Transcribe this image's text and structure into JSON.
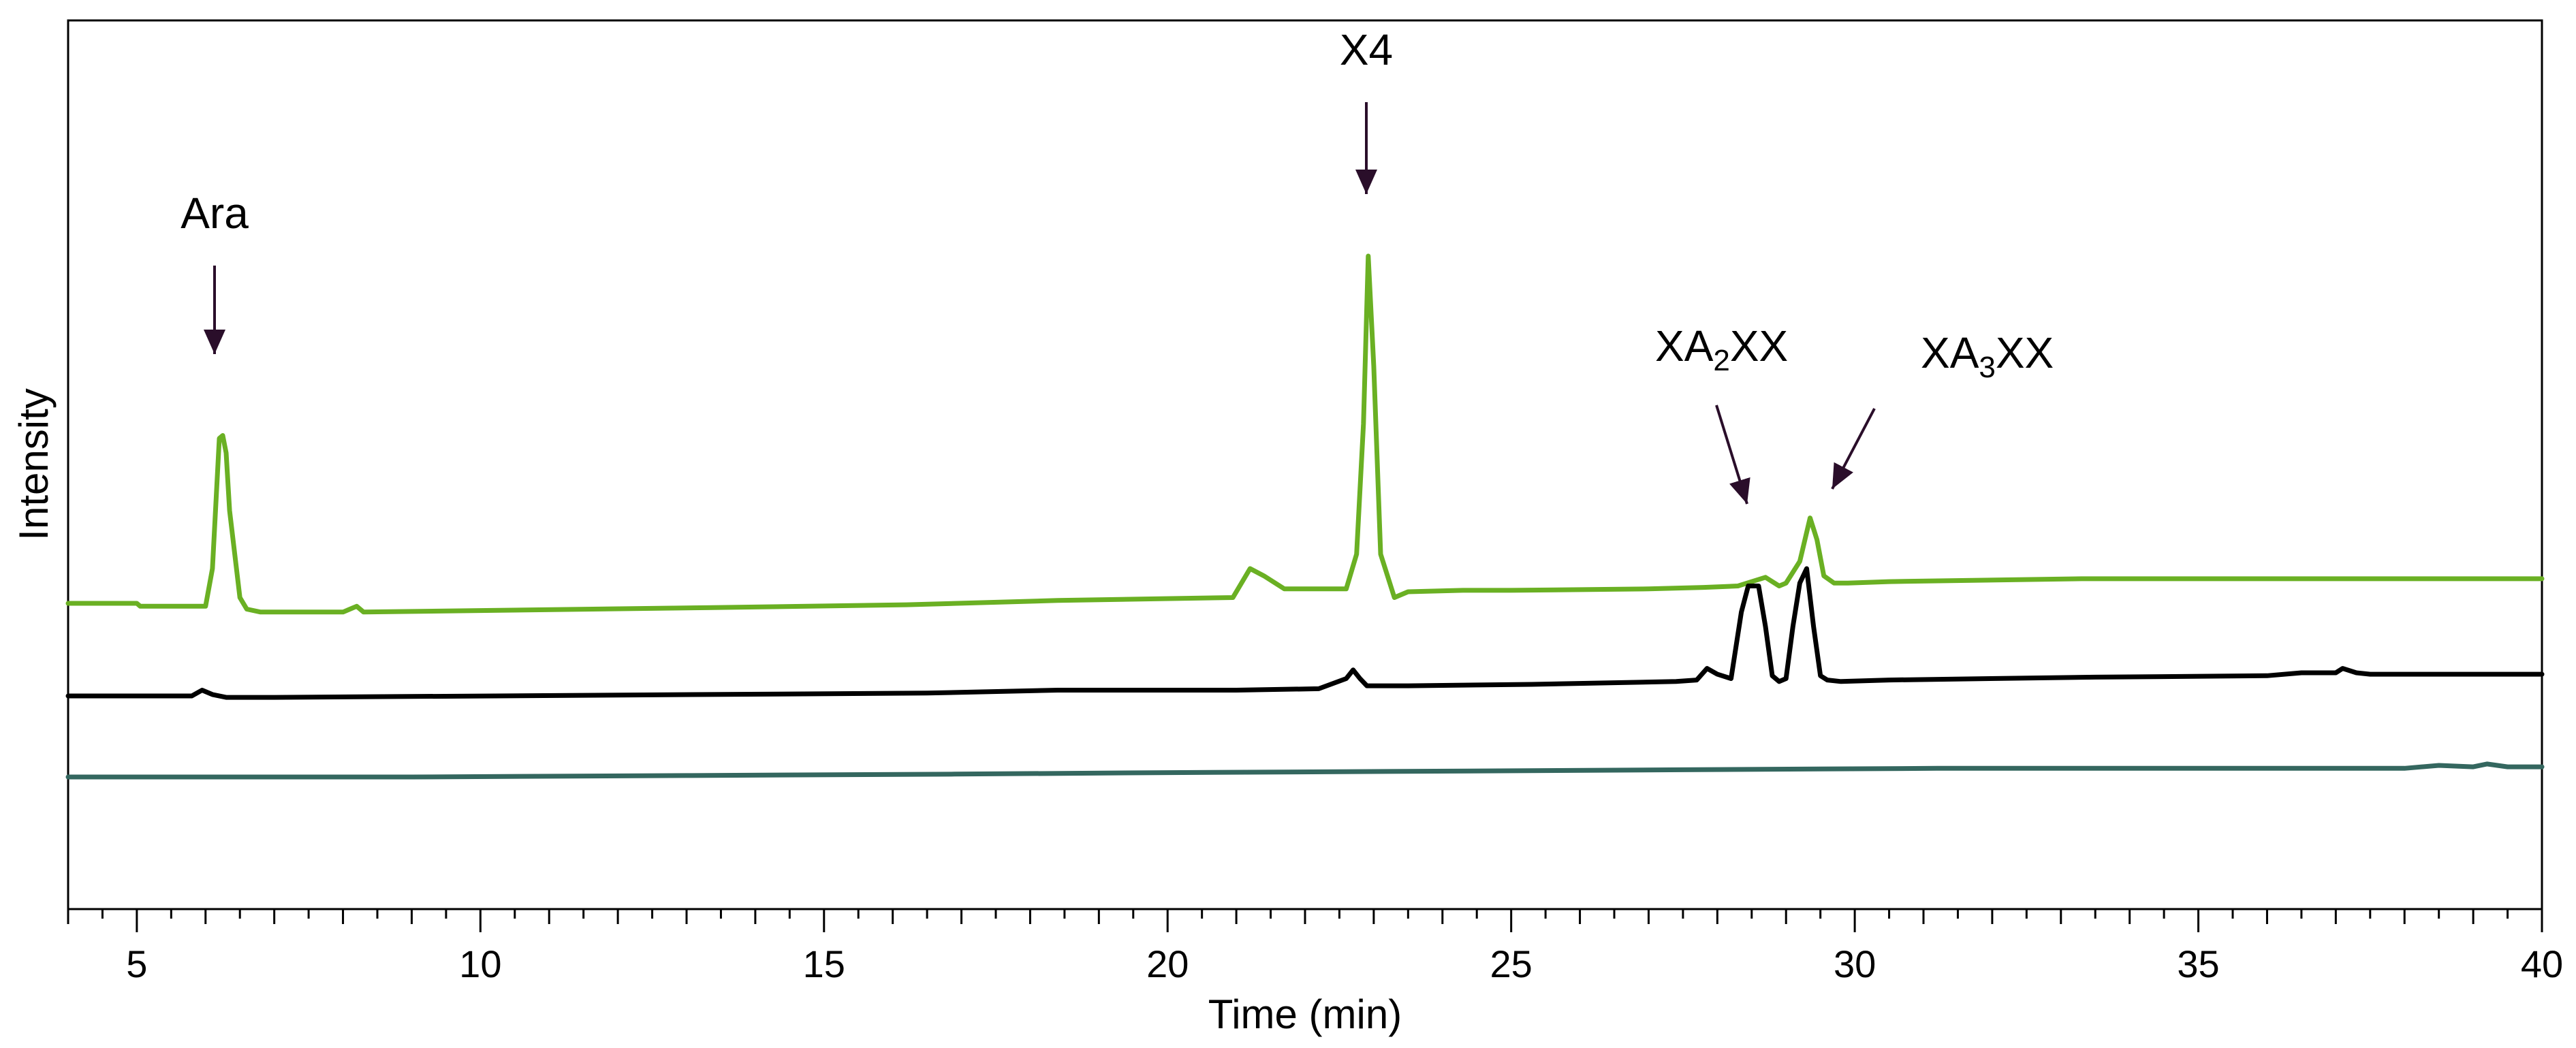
{
  "chart_data": {
    "type": "line",
    "title": "",
    "xlabel": "Time (min)",
    "ylabel": "Intensity",
    "xlim": [
      4,
      40
    ],
    "x_ticks": [
      5,
      10,
      15,
      20,
      25,
      30,
      35,
      40
    ],
    "x_minor_tick_step": 0.5,
    "y_axis_ticks": false,
    "grid": false,
    "legend": "none",
    "y_units": "arbitrary",
    "series": [
      {
        "color": "#6ab023",
        "x": [
          4.0,
          5.0,
          5.05,
          6.0,
          6.1,
          6.2,
          6.25,
          6.3,
          6.35,
          6.5,
          6.6,
          6.8,
          7.0,
          8.0,
          8.2,
          8.3,
          13.3,
          16.2,
          18.4,
          20.95,
          21.2,
          21.4,
          21.7,
          22.6,
          22.75,
          22.85,
          22.92,
          23.0,
          23.1,
          23.3,
          23.5,
          24.3,
          25.0,
          27.0,
          27.8,
          28.3,
          28.7,
          28.9,
          29.0,
          29.2,
          29.35,
          29.45,
          29.55,
          29.7,
          29.9,
          30.5,
          33.3,
          36.0,
          40.0
        ],
        "y": [
          1.6,
          1.6,
          1.4,
          1.4,
          4.0,
          13.0,
          13.2,
          12.0,
          8.0,
          2.0,
          1.2,
          1.0,
          1.0,
          1.0,
          1.4,
          1.0,
          1.3,
          1.5,
          1.8,
          2.0,
          4.0,
          3.5,
          2.6,
          2.6,
          5.0,
          14.0,
          25.6,
          18.0,
          5.0,
          2.0,
          2.4,
          2.5,
          2.5,
          2.6,
          2.7,
          2.8,
          3.4,
          2.8,
          3.0,
          4.5,
          7.5,
          6.0,
          3.5,
          3.0,
          3.0,
          3.1,
          3.3,
          3.3,
          3.3
        ]
      },
      {
        "color": "#000000",
        "x": [
          4.0,
          5.0,
          5.8,
          5.95,
          6.1,
          6.3,
          7.0,
          13.3,
          16.5,
          18.4,
          21.0,
          22.2,
          22.6,
          22.7,
          22.8,
          22.9,
          23.5,
          25.3,
          27.4,
          27.7,
          27.85,
          28.0,
          28.2,
          28.35,
          28.45,
          28.6,
          28.7,
          28.8,
          28.9,
          29.0,
          29.1,
          29.2,
          29.3,
          29.4,
          29.5,
          29.6,
          29.8,
          30.5,
          33.5,
          36.0,
          36.5,
          37.0,
          37.1,
          37.3,
          37.5,
          40.0
        ],
        "y": [
          -4.8,
          -4.8,
          -4.8,
          -4.4,
          -4.7,
          -4.9,
          -4.9,
          -4.7,
          -4.6,
          -4.4,
          -4.4,
          -4.3,
          -3.6,
          -3.0,
          -3.6,
          -4.1,
          -4.1,
          -4.0,
          -3.8,
          -3.7,
          -2.9,
          -3.3,
          -3.6,
          1.0,
          2.8,
          2.8,
          0.0,
          -3.4,
          -3.8,
          -3.6,
          0.0,
          3.0,
          4.0,
          0.0,
          -3.4,
          -3.7,
          -3.8,
          -3.7,
          -3.5,
          -3.4,
          -3.2,
          -3.2,
          -2.9,
          -3.2,
          -3.3,
          -3.3
        ]
      },
      {
        "color": "#34675f",
        "x": [
          4.0,
          9.0,
          13.0,
          16.9,
          20.0,
          23.9,
          27.5,
          31.2,
          38.0,
          38.5,
          39.0,
          39.2,
          39.5,
          40.0
        ],
        "y": [
          -10.4,
          -10.4,
          -10.3,
          -10.2,
          -10.1,
          -10.0,
          -9.9,
          -9.8,
          -9.8,
          -9.6,
          -9.7,
          -9.5,
          -9.7,
          -9.7
        ]
      }
    ],
    "annotations": [
      {
        "label": "Ara",
        "x": 6.25
      },
      {
        "label": "X4",
        "x": 22.92
      },
      {
        "label": "XA",
        "sub": "2",
        "suffix": "XX",
        "x": 28.6
      },
      {
        "label": "XA",
        "sub": "3",
        "suffix": "XX",
        "x": 29.3
      }
    ]
  }
}
